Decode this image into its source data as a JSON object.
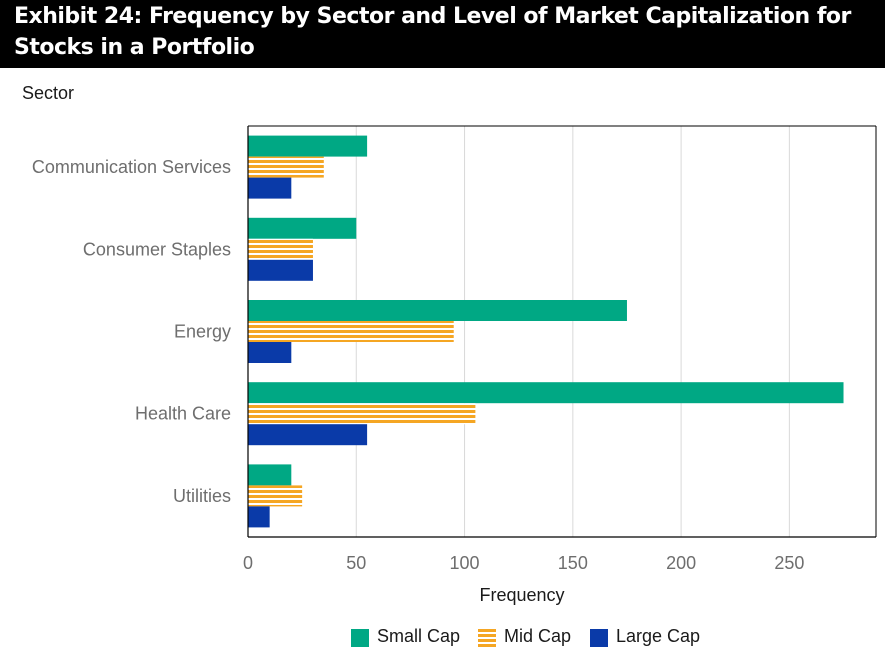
{
  "title": "Exhibit 24: Frequency by Sector and Level of Market Capitalization for Stocks in a Portfolio",
  "colors": {
    "small_cap": "#00a884",
    "mid_cap": "#f5a623",
    "large_cap": "#0a3aa8",
    "axis": "#000000",
    "grid": "#d9d9d9"
  },
  "chart_data": {
    "type": "bar",
    "orientation": "horizontal",
    "title": "Exhibit 24: Frequency by Sector and Level of Market Capitalization for Stocks in a Portfolio",
    "ylabel": "Sector",
    "xlabel": "Frequency",
    "categories": [
      "Communication Services",
      "Consumer Staples",
      "Energy",
      "Health Care",
      "Utilities"
    ],
    "series": [
      {
        "name": "Small Cap",
        "values": [
          55,
          50,
          175,
          275,
          20
        ]
      },
      {
        "name": "Mid Cap",
        "values": [
          35,
          30,
          95,
          105,
          25
        ]
      },
      {
        "name": "Large Cap",
        "values": [
          20,
          30,
          20,
          55,
          10
        ]
      }
    ],
    "xlim": [
      0,
      290
    ],
    "xticks": [
      0,
      50,
      100,
      150,
      200,
      250
    ],
    "grid": true,
    "legend": "bottom"
  }
}
